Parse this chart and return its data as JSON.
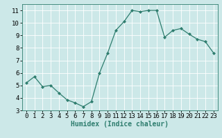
{
  "x": [
    0,
    1,
    2,
    3,
    4,
    5,
    6,
    7,
    8,
    9,
    10,
    11,
    12,
    13,
    14,
    15,
    16,
    17,
    18,
    19,
    20,
    21,
    22,
    23
  ],
  "y": [
    5.2,
    5.7,
    4.9,
    5.0,
    4.4,
    3.85,
    3.6,
    3.3,
    3.7,
    6.0,
    7.6,
    9.4,
    10.1,
    11.0,
    10.9,
    11.0,
    11.0,
    8.85,
    9.4,
    9.55,
    9.1,
    8.7,
    8.5,
    7.6
  ],
  "line_color": "#2e7d6e",
  "marker": "D",
  "marker_size": 2.0,
  "bg_color": "#cce8e8",
  "grid_color": "#ffffff",
  "xlabel": "Humidex (Indice chaleur)",
  "ylim": [
    3,
    11.5
  ],
  "xlim": [
    -0.5,
    23.5
  ],
  "yticks": [
    3,
    4,
    5,
    6,
    7,
    8,
    9,
    10,
    11
  ],
  "xticks": [
    0,
    1,
    2,
    3,
    4,
    5,
    6,
    7,
    8,
    9,
    10,
    11,
    12,
    13,
    14,
    15,
    16,
    17,
    18,
    19,
    20,
    21,
    22,
    23
  ],
  "font_size_label": 7,
  "font_size_tick": 6.5,
  "grid_linewidth": 0.6,
  "line_width": 0.9
}
